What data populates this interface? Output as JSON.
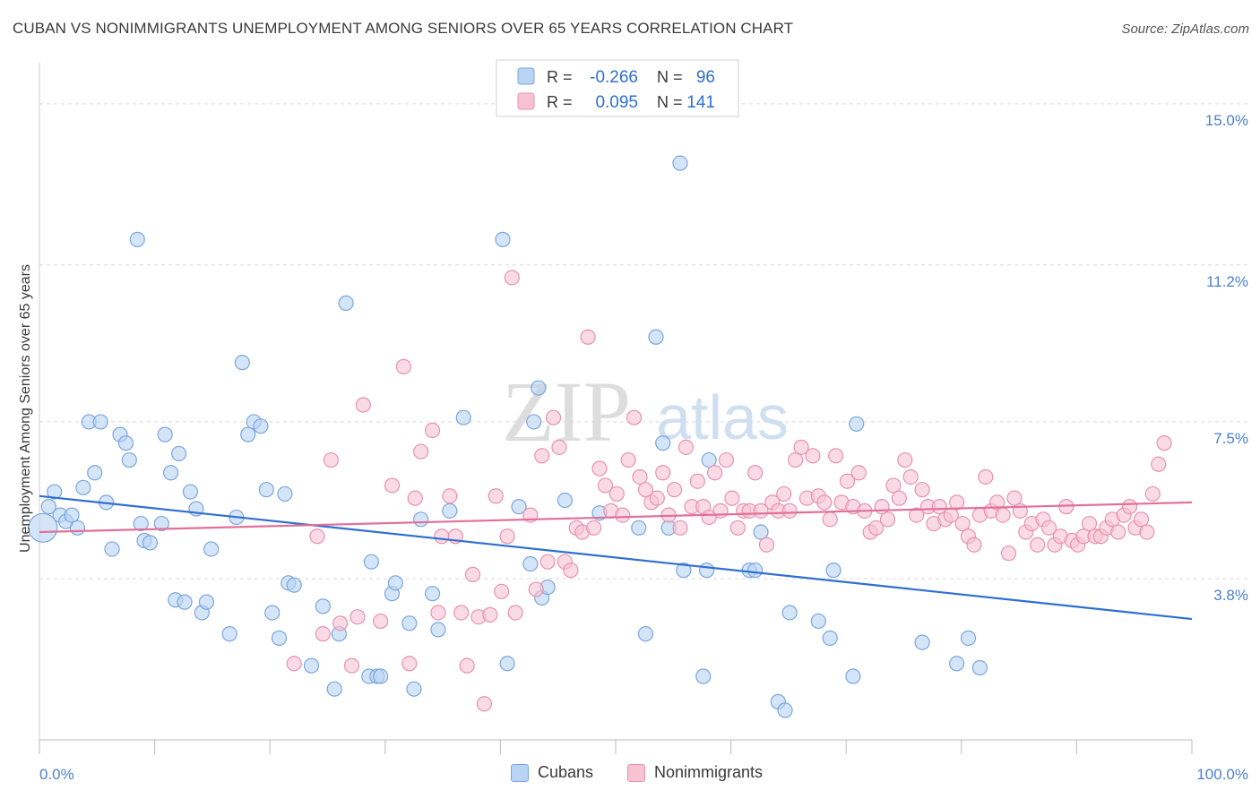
{
  "header": {
    "title": "CUBAN VS NONIMMIGRANTS UNEMPLOYMENT AMONG SENIORS OVER 65 YEARS CORRELATION CHART",
    "source": "Source: ZipAtlas.com"
  },
  "watermark": {
    "zip": "ZIP",
    "atlas": "atlas"
  },
  "colors": {
    "cubans_fill": "#b9d3f4",
    "cubans_stroke": "#7aa6dd",
    "cubans_line": "#2f6fd0",
    "nonimm_fill": "#f7c3d3",
    "nonimm_stroke": "#e892ad",
    "nonimm_line": "#e0709a",
    "tick_label": "#4a7fcf",
    "grid": "#d9d9d9"
  },
  "legend": {
    "items": [
      {
        "r_label": "R =",
        "r_value": "-0.266",
        "n_label": "N =",
        "n_value": "96"
      },
      {
        "r_label": "R =",
        "r_value": "0.095",
        "n_label": "N =",
        "n_value": "141"
      }
    ]
  },
  "bottom_legend": {
    "cubans": "Cubans",
    "nonimmigrants": "Nonimmigrants"
  },
  "chart_data": {
    "type": "scatter",
    "title": "CUBAN VS NONIMMIGRANTS UNEMPLOYMENT AMONG SENIORS OVER 65 YEARS CORRELATION CHART",
    "xlabel": "",
    "ylabel": "Unemployment Among Seniors over 65 years",
    "xlim": [
      0,
      100
    ],
    "ylim": [
      0,
      15.8
    ],
    "x_tick_labels": [
      "0.0%",
      "100.0%"
    ],
    "y_ticks": [
      3.8,
      7.5,
      11.2,
      15.0
    ],
    "y_tick_labels": [
      "3.8%",
      "7.5%",
      "11.2%",
      "15.0%"
    ],
    "grid": true,
    "legend_position": "top-center",
    "series": [
      {
        "name": "Cubans",
        "trend": {
          "x": [
            0,
            100
          ],
          "y": [
            5.75,
            2.85
          ]
        },
        "points": [
          [
            0.3,
            5.0
          ],
          [
            0.8,
            5.5
          ],
          [
            1.3,
            5.85
          ],
          [
            1.8,
            5.3
          ],
          [
            2.3,
            5.15
          ],
          [
            2.8,
            5.3
          ],
          [
            3.3,
            5.0
          ],
          [
            3.8,
            5.95
          ],
          [
            4.3,
            7.5
          ],
          [
            4.8,
            6.3
          ],
          [
            5.3,
            7.5
          ],
          [
            5.8,
            5.6
          ],
          [
            6.3,
            4.5
          ],
          [
            7.0,
            7.2
          ],
          [
            7.5,
            7.0
          ],
          [
            7.8,
            6.6
          ],
          [
            8.5,
            11.8
          ],
          [
            8.8,
            5.1
          ],
          [
            9.1,
            4.7
          ],
          [
            9.6,
            4.65
          ],
          [
            10.6,
            5.1
          ],
          [
            10.9,
            7.2
          ],
          [
            11.4,
            6.3
          ],
          [
            11.8,
            3.3
          ],
          [
            12.1,
            6.75
          ],
          [
            12.6,
            3.25
          ],
          [
            13.1,
            5.85
          ],
          [
            13.6,
            5.45
          ],
          [
            14.1,
            3.0
          ],
          [
            14.5,
            3.25
          ],
          [
            14.9,
            4.5
          ],
          [
            16.5,
            2.5
          ],
          [
            17.1,
            5.25
          ],
          [
            17.6,
            8.9
          ],
          [
            18.1,
            7.2
          ],
          [
            18.6,
            7.5
          ],
          [
            19.2,
            7.4
          ],
          [
            19.7,
            5.9
          ],
          [
            20.2,
            3.0
          ],
          [
            20.8,
            2.4
          ],
          [
            21.3,
            5.8
          ],
          [
            21.6,
            3.7
          ],
          [
            22.1,
            3.65
          ],
          [
            23.6,
            1.75
          ],
          [
            24.6,
            3.15
          ],
          [
            25.6,
            1.2
          ],
          [
            26.0,
            2.5
          ],
          [
            26.6,
            10.3
          ],
          [
            28.6,
            1.5
          ],
          [
            28.8,
            4.2
          ],
          [
            29.3,
            1.5
          ],
          [
            29.6,
            1.5
          ],
          [
            30.6,
            3.45
          ],
          [
            30.9,
            3.7
          ],
          [
            32.1,
            2.75
          ],
          [
            32.5,
            1.2
          ],
          [
            33.1,
            5.2
          ],
          [
            34.1,
            3.45
          ],
          [
            34.6,
            2.6
          ],
          [
            35.6,
            5.4
          ],
          [
            36.8,
            7.6
          ],
          [
            40.2,
            11.8
          ],
          [
            40.6,
            1.8
          ],
          [
            41.6,
            5.5
          ],
          [
            42.6,
            4.15
          ],
          [
            42.9,
            7.5
          ],
          [
            43.3,
            8.3
          ],
          [
            43.6,
            3.35
          ],
          [
            44.1,
            3.6
          ],
          [
            45.6,
            5.65
          ],
          [
            48.6,
            5.35
          ],
          [
            52.0,
            5.0
          ],
          [
            52.6,
            2.5
          ],
          [
            53.5,
            9.5
          ],
          [
            54.1,
            7.0
          ],
          [
            54.6,
            5.0
          ],
          [
            55.6,
            13.6
          ],
          [
            55.9,
            4.0
          ],
          [
            57.6,
            1.5
          ],
          [
            57.9,
            4.0
          ],
          [
            58.1,
            6.6
          ],
          [
            61.6,
            4.0
          ],
          [
            62.1,
            4.0
          ],
          [
            62.6,
            4.9
          ],
          [
            64.1,
            0.9
          ],
          [
            64.7,
            0.7
          ],
          [
            65.1,
            3.0
          ],
          [
            67.6,
            2.8
          ],
          [
            68.6,
            2.4
          ],
          [
            68.9,
            4.0
          ],
          [
            70.6,
            1.5
          ],
          [
            70.9,
            7.45
          ],
          [
            76.6,
            2.3
          ],
          [
            79.6,
            1.8
          ],
          [
            80.6,
            2.4
          ],
          [
            81.6,
            1.7
          ]
        ]
      },
      {
        "name": "Nonimmigrants",
        "trend": {
          "x": [
            0,
            100
          ],
          "y": [
            4.9,
            5.6
          ]
        },
        "points": [
          [
            22.1,
            1.8
          ],
          [
            24.1,
            4.8
          ],
          [
            24.6,
            2.5
          ],
          [
            25.3,
            6.6
          ],
          [
            26.1,
            2.75
          ],
          [
            27.1,
            1.75
          ],
          [
            27.6,
            2.9
          ],
          [
            28.1,
            7.9
          ],
          [
            29.6,
            2.8
          ],
          [
            30.6,
            6.0
          ],
          [
            31.6,
            8.8
          ],
          [
            32.1,
            1.8
          ],
          [
            32.6,
            5.7
          ],
          [
            33.1,
            6.8
          ],
          [
            34.1,
            7.3
          ],
          [
            34.6,
            3.0
          ],
          [
            34.9,
            4.8
          ],
          [
            35.6,
            5.75
          ],
          [
            36.1,
            4.8
          ],
          [
            36.6,
            3.0
          ],
          [
            37.1,
            1.75
          ],
          [
            37.6,
            3.9
          ],
          [
            38.1,
            2.9
          ],
          [
            38.6,
            0.85
          ],
          [
            39.1,
            2.95
          ],
          [
            39.6,
            5.75
          ],
          [
            40.1,
            3.5
          ],
          [
            40.6,
            4.8
          ],
          [
            41.0,
            10.9
          ],
          [
            41.3,
            3.0
          ],
          [
            42.6,
            5.3
          ],
          [
            43.1,
            3.55
          ],
          [
            43.6,
            6.7
          ],
          [
            44.1,
            4.2
          ],
          [
            44.6,
            7.6
          ],
          [
            45.1,
            6.9
          ],
          [
            45.6,
            4.2
          ],
          [
            46.1,
            4.0
          ],
          [
            46.6,
            5.0
          ],
          [
            47.1,
            4.9
          ],
          [
            47.6,
            9.5
          ],
          [
            48.1,
            5.0
          ],
          [
            48.6,
            6.4
          ],
          [
            49.1,
            6.0
          ],
          [
            49.6,
            5.4
          ],
          [
            50.1,
            5.8
          ],
          [
            50.6,
            5.3
          ],
          [
            51.1,
            6.6
          ],
          [
            51.6,
            7.6
          ],
          [
            52.1,
            6.2
          ],
          [
            52.6,
            5.9
          ],
          [
            53.1,
            5.6
          ],
          [
            53.6,
            5.7
          ],
          [
            54.1,
            6.3
          ],
          [
            54.6,
            5.3
          ],
          [
            55.1,
            5.9
          ],
          [
            55.6,
            5.0
          ],
          [
            56.1,
            6.9
          ],
          [
            56.6,
            5.5
          ],
          [
            57.1,
            6.1
          ],
          [
            57.6,
            5.5
          ],
          [
            58.1,
            5.25
          ],
          [
            58.6,
            6.3
          ],
          [
            59.1,
            5.4
          ],
          [
            59.6,
            6.6
          ],
          [
            60.1,
            5.7
          ],
          [
            60.6,
            5.0
          ],
          [
            61.1,
            5.4
          ],
          [
            61.6,
            5.4
          ],
          [
            62.1,
            6.3
          ],
          [
            62.6,
            5.4
          ],
          [
            63.1,
            4.6
          ],
          [
            63.6,
            5.6
          ],
          [
            64.1,
            5.4
          ],
          [
            64.6,
            5.8
          ],
          [
            65.1,
            5.4
          ],
          [
            65.6,
            6.6
          ],
          [
            66.1,
            6.9
          ],
          [
            66.6,
            5.7
          ],
          [
            67.1,
            6.7
          ],
          [
            67.6,
            5.75
          ],
          [
            68.1,
            5.6
          ],
          [
            68.6,
            5.2
          ],
          [
            69.1,
            6.7
          ],
          [
            69.6,
            5.6
          ],
          [
            70.1,
            6.1
          ],
          [
            70.6,
            5.5
          ],
          [
            71.1,
            6.3
          ],
          [
            71.6,
            5.4
          ],
          [
            72.1,
            4.9
          ],
          [
            72.6,
            5.0
          ],
          [
            73.1,
            5.5
          ],
          [
            73.6,
            5.2
          ],
          [
            74.1,
            6.0
          ],
          [
            74.6,
            5.7
          ],
          [
            75.1,
            6.6
          ],
          [
            75.6,
            6.2
          ],
          [
            76.1,
            5.3
          ],
          [
            76.6,
            5.9
          ],
          [
            77.1,
            5.5
          ],
          [
            77.6,
            5.1
          ],
          [
            78.1,
            5.5
          ],
          [
            78.6,
            5.2
          ],
          [
            79.1,
            5.3
          ],
          [
            79.6,
            5.6
          ],
          [
            80.1,
            5.1
          ],
          [
            80.6,
            4.8
          ],
          [
            81.1,
            4.6
          ],
          [
            81.6,
            5.3
          ],
          [
            82.1,
            6.2
          ],
          [
            82.6,
            5.4
          ],
          [
            83.1,
            5.6
          ],
          [
            83.6,
            5.3
          ],
          [
            84.1,
            4.4
          ],
          [
            84.6,
            5.7
          ],
          [
            85.1,
            5.4
          ],
          [
            85.6,
            4.9
          ],
          [
            86.1,
            5.1
          ],
          [
            86.6,
            4.6
          ],
          [
            87.1,
            5.2
          ],
          [
            87.6,
            5.0
          ],
          [
            88.1,
            4.6
          ],
          [
            88.6,
            4.8
          ],
          [
            89.1,
            5.5
          ],
          [
            89.6,
            4.7
          ],
          [
            90.1,
            4.6
          ],
          [
            90.6,
            4.8
          ],
          [
            91.1,
            5.1
          ],
          [
            91.6,
            4.8
          ],
          [
            92.1,
            4.8
          ],
          [
            92.6,
            5.0
          ],
          [
            93.1,
            5.2
          ],
          [
            93.6,
            4.9
          ],
          [
            94.1,
            5.3
          ],
          [
            94.6,
            5.5
          ],
          [
            95.1,
            5.0
          ],
          [
            95.6,
            5.2
          ],
          [
            96.1,
            4.9
          ],
          [
            96.6,
            5.8
          ],
          [
            97.1,
            6.5
          ],
          [
            97.6,
            7.0
          ]
        ]
      }
    ]
  }
}
